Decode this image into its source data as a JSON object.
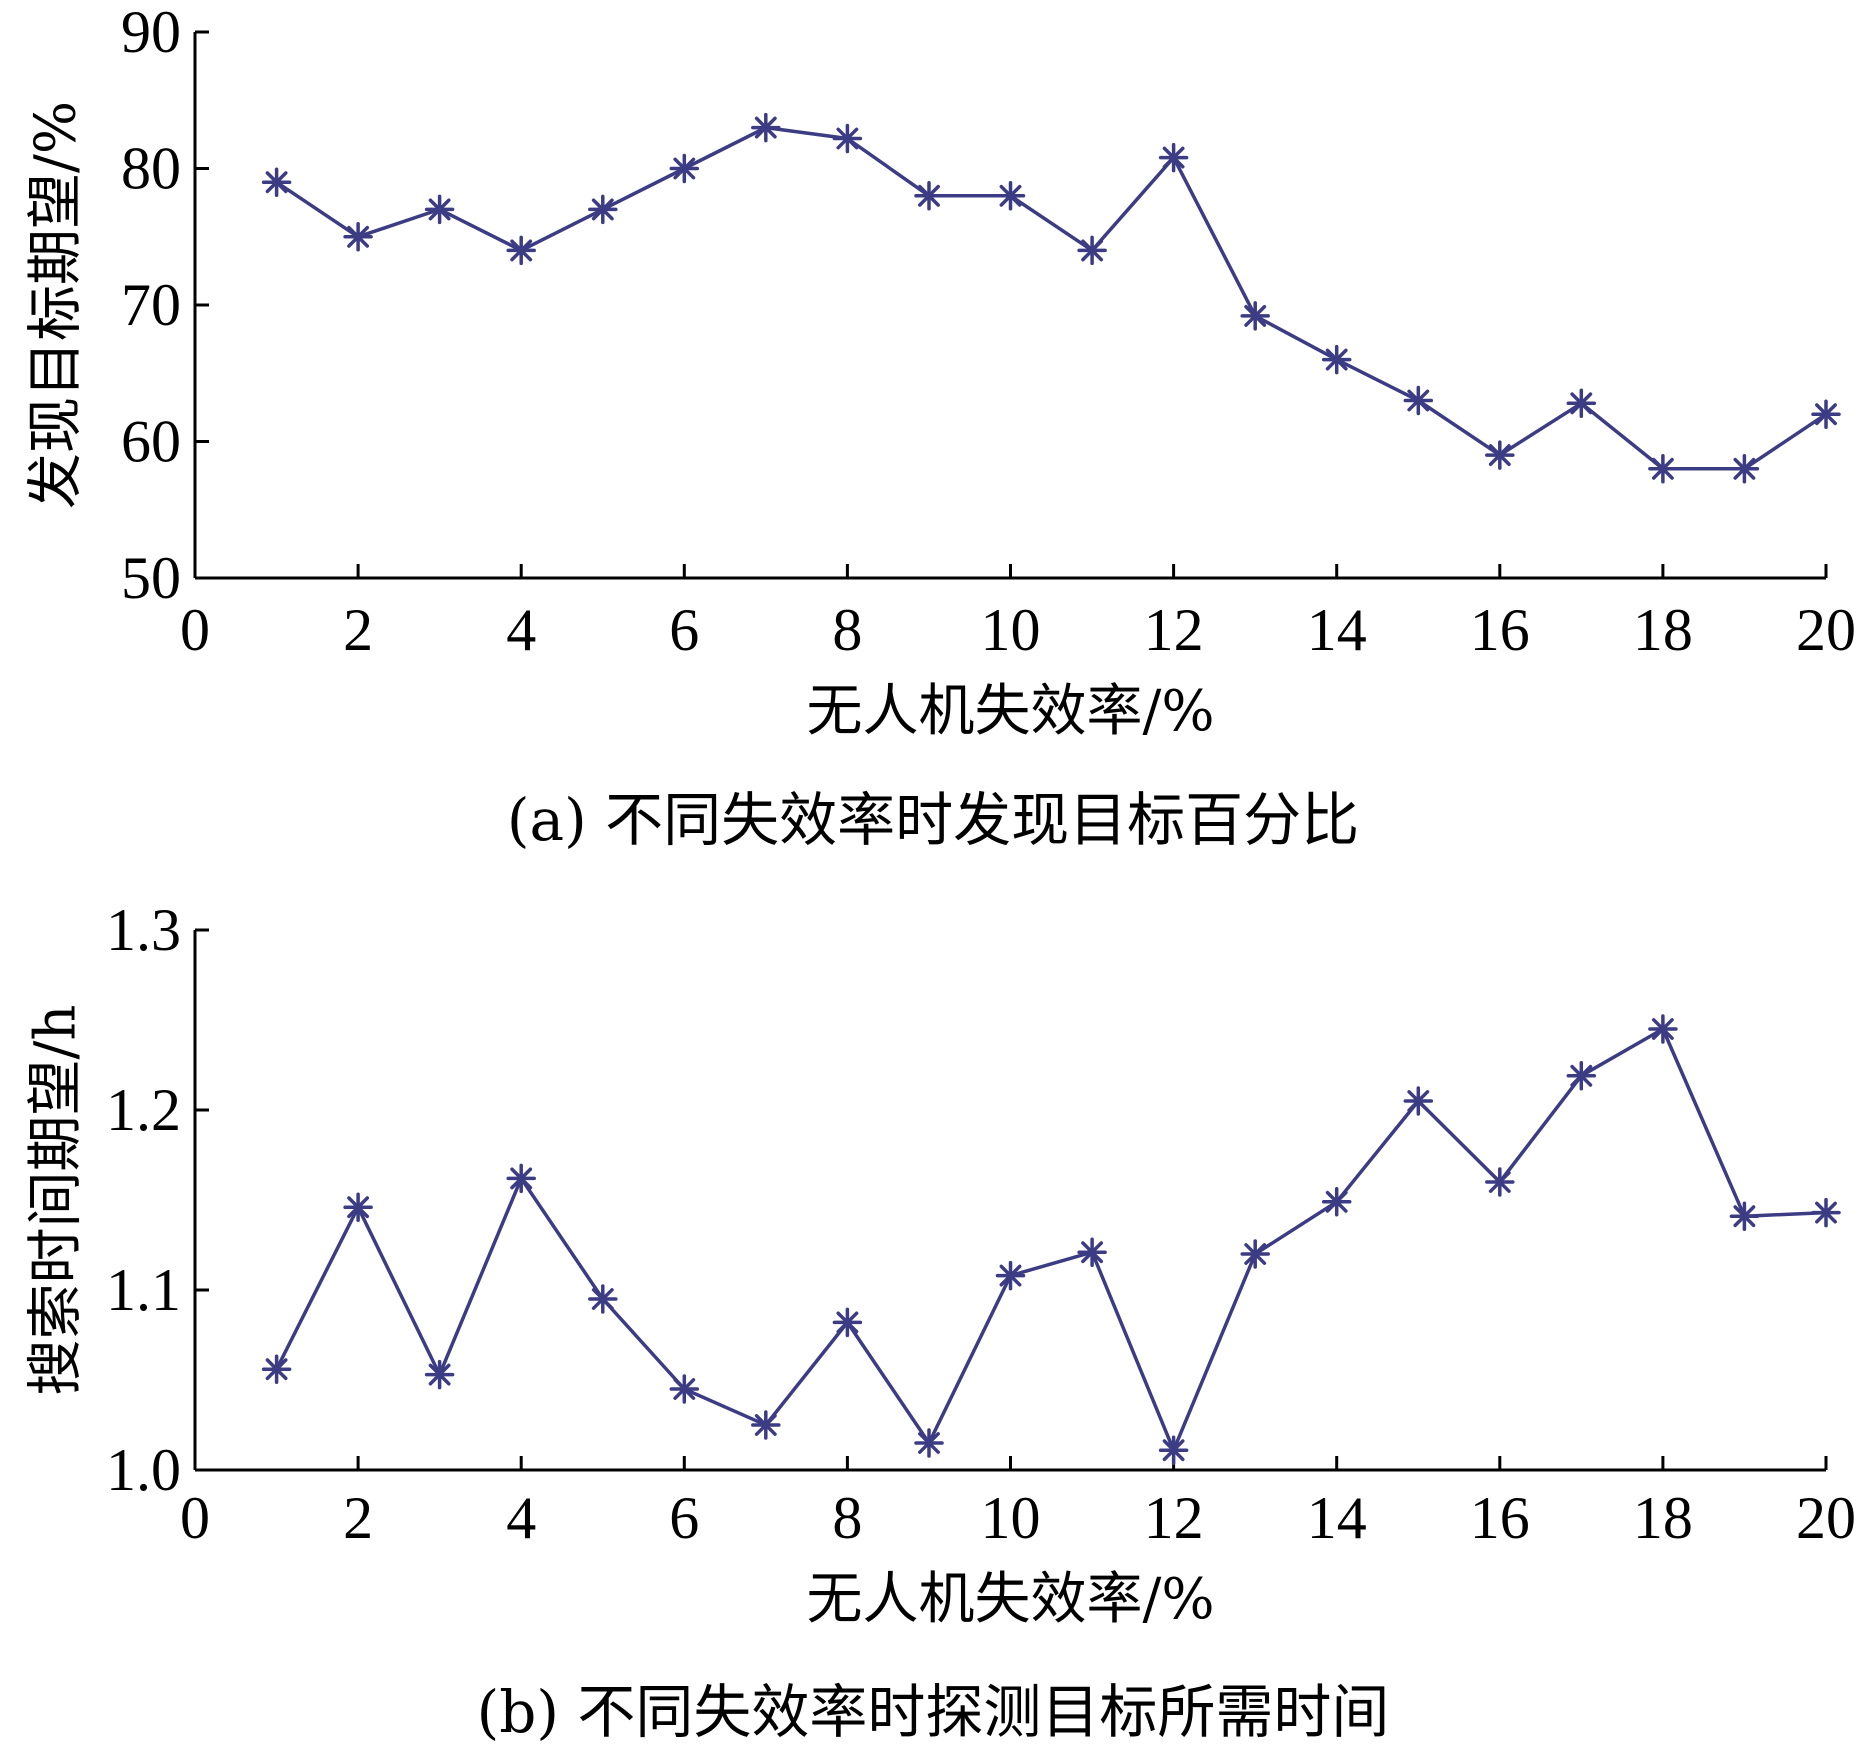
{
  "chart_data": [
    {
      "type": "line",
      "caption": "(a) 不同失效率时发现目标百分比",
      "xlabel": "无人机失效率/%",
      "ylabel": "发现目标期望/%",
      "xlim": [
        0,
        20
      ],
      "ylim": [
        50,
        90
      ],
      "xticks": [
        "0",
        "2",
        "4",
        "6",
        "8",
        "10",
        "12",
        "14",
        "16",
        "18",
        "20"
      ],
      "yticks": [
        "50",
        "60",
        "70",
        "80",
        "90"
      ],
      "grid": false,
      "marker": "asterisk",
      "color": "#3c3c84",
      "series": [
        {
          "x": [
            1,
            2,
            3,
            4,
            5,
            6,
            7,
            8,
            9,
            10,
            11,
            12,
            13,
            14,
            15,
            16,
            17,
            18,
            19,
            20
          ],
          "values": [
            79,
            75,
            77,
            74,
            77,
            80,
            83,
            82.2,
            78,
            78,
            74,
            80.8,
            69.2,
            66,
            63,
            59,
            62.8,
            58,
            58,
            62
          ]
        }
      ]
    },
    {
      "type": "line",
      "caption": "(b) 不同失效率时探测目标所需时间",
      "xlabel": "无人机失效率/%",
      "ylabel": "搜索时间期望/h",
      "xlim": [
        0,
        20
      ],
      "ylim": [
        1.0,
        1.3
      ],
      "xticks": [
        "0",
        "2",
        "4",
        "6",
        "8",
        "10",
        "12",
        "14",
        "16",
        "18",
        "20"
      ],
      "yticks": [
        "1.0",
        "1.1",
        "1.2",
        "1.3"
      ],
      "grid": false,
      "marker": "asterisk",
      "color": "#3c3c84",
      "series": [
        {
          "x": [
            1,
            2,
            3,
            4,
            5,
            6,
            7,
            8,
            9,
            10,
            11,
            12,
            13,
            14,
            15,
            16,
            17,
            18,
            19,
            20
          ],
          "values": [
            1.056,
            1.146,
            1.053,
            1.162,
            1.095,
            1.045,
            1.025,
            1.082,
            1.015,
            1.108,
            1.121,
            1.011,
            1.12,
            1.149,
            1.205,
            1.16,
            1.219,
            1.245,
            1.141,
            1.143
          ]
        }
      ]
    }
  ]
}
